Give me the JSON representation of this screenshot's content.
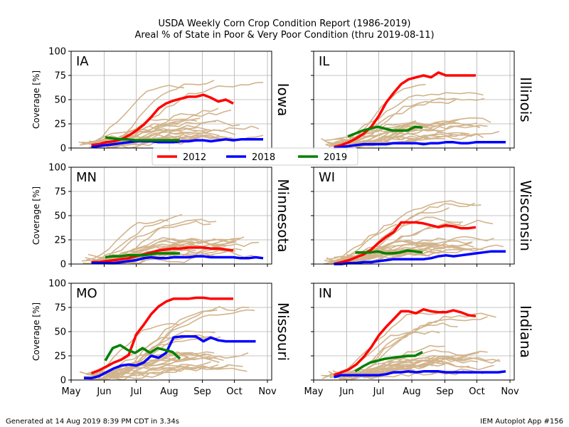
{
  "title_line1": "USDA Weekly Corn Crop Condition Report (1986-2019)",
  "title_line2": "Areal % of State in Poor & Very Poor Condition (thru 2019-08-11)",
  "footer_left": "Generated at 14 Aug 2019 8:39 PM CDT in 3.34s",
  "footer_right": "IEM Autoplot App #156",
  "colors": {
    "y2012": "#ff0000",
    "y2018": "#0000ff",
    "y2019": "#008000",
    "history": "#d2b48c"
  },
  "legend": [
    "2012",
    "2018",
    "2019"
  ],
  "chart_data": [
    {
      "type": "line",
      "abbr": "IA",
      "state": "Iowa",
      "ylabel": "Coverage [%]",
      "ylim": [
        0,
        100
      ],
      "y_ticks": [
        0,
        25,
        50,
        75,
        100
      ],
      "x_ticks": [
        "May",
        "Jun",
        "Jul",
        "Aug",
        "Sep",
        "Oct",
        "Nov"
      ],
      "grid": true,
      "series": [
        {
          "name": "2012",
          "x": [
            "05-20",
            "05-27",
            "06-03",
            "06-10",
            "06-17",
            "06-24",
            "07-01",
            "07-08",
            "07-15",
            "07-22",
            "07-29",
            "08-05",
            "08-12",
            "08-19",
            "08-26",
            "09-02",
            "09-09",
            "09-16",
            "09-23",
            "09-30"
          ],
          "y": [
            3,
            4,
            6,
            7,
            9,
            13,
            18,
            24,
            32,
            41,
            46,
            49,
            51,
            53,
            53,
            55,
            52,
            48,
            50,
            46
          ]
        },
        {
          "name": "2018",
          "x": [
            "05-20",
            "05-27",
            "06-03",
            "06-10",
            "06-17",
            "06-24",
            "07-01",
            "07-08",
            "07-15",
            "07-22",
            "07-29",
            "08-05",
            "08-12",
            "08-19",
            "08-26",
            "09-02",
            "09-09",
            "09-16",
            "09-23",
            "09-30",
            "10-07",
            "10-14",
            "10-21",
            "10-28"
          ],
          "y": [
            1,
            2,
            3,
            4,
            5,
            6,
            7,
            7,
            7,
            6,
            6,
            6,
            7,
            7,
            8,
            8,
            7,
            8,
            9,
            8,
            9,
            9,
            9,
            9
          ]
        },
        {
          "name": "2019",
          "x": [
            "06-02",
            "06-09",
            "06-16",
            "06-23",
            "06-30",
            "07-07",
            "07-14",
            "07-21",
            "07-28",
            "08-04",
            "08-11"
          ],
          "y": [
            11,
            10,
            9,
            9,
            8,
            8,
            8,
            8,
            8,
            8,
            8
          ]
        }
      ]
    },
    {
      "type": "line",
      "abbr": "IL",
      "state": "Illinois",
      "ylabel": "",
      "ylim": [
        0,
        100
      ],
      "y_ticks": [
        0,
        25,
        50,
        75,
        100
      ],
      "x_ticks": [
        "May",
        "Jun",
        "Jul",
        "Aug",
        "Sep",
        "Oct",
        "Nov"
      ],
      "grid": true,
      "series": [
        {
          "name": "2012",
          "x": [
            "05-20",
            "05-27",
            "06-03",
            "06-10",
            "06-17",
            "06-24",
            "07-01",
            "07-08",
            "07-15",
            "07-22",
            "07-29",
            "08-05",
            "08-12",
            "08-19",
            "08-26",
            "09-02",
            "09-09",
            "09-16",
            "09-23",
            "09-30"
          ],
          "y": [
            1,
            3,
            6,
            10,
            15,
            22,
            33,
            47,
            57,
            66,
            71,
            73,
            75,
            73,
            78,
            75,
            75,
            75,
            75,
            75
          ]
        },
        {
          "name": "2018",
          "x": [
            "05-20",
            "05-27",
            "06-03",
            "06-10",
            "06-17",
            "06-24",
            "07-01",
            "07-08",
            "07-15",
            "07-22",
            "07-29",
            "08-05",
            "08-12",
            "08-19",
            "08-26",
            "09-02",
            "09-09",
            "09-16",
            "09-23",
            "09-30",
            "10-07",
            "10-14",
            "10-21",
            "10-28"
          ],
          "y": [
            0,
            1,
            2,
            3,
            4,
            4,
            4,
            4,
            5,
            5,
            5,
            5,
            4,
            5,
            5,
            6,
            6,
            5,
            5,
            6,
            6,
            6,
            6,
            6
          ]
        },
        {
          "name": "2019",
          "x": [
            "06-02",
            "06-09",
            "06-16",
            "06-23",
            "06-30",
            "07-07",
            "07-14",
            "07-21",
            "07-28",
            "08-04",
            "08-11"
          ],
          "y": [
            12,
            15,
            18,
            20,
            22,
            20,
            18,
            18,
            18,
            22,
            21
          ]
        }
      ]
    },
    {
      "type": "line",
      "abbr": "MN",
      "state": "Minnesota",
      "ylabel": "Coverage [%]",
      "ylim": [
        0,
        100
      ],
      "y_ticks": [
        0,
        25,
        50,
        75,
        100
      ],
      "x_ticks": [
        "May",
        "Jun",
        "Jul",
        "Aug",
        "Sep",
        "Oct",
        "Nov"
      ],
      "grid": true,
      "series": [
        {
          "name": "2012",
          "x": [
            "05-20",
            "05-27",
            "06-03",
            "06-10",
            "06-17",
            "06-24",
            "07-01",
            "07-08",
            "07-15",
            "07-22",
            "07-29",
            "08-05",
            "08-12",
            "08-19",
            "08-26",
            "09-02",
            "09-09",
            "09-16",
            "09-23",
            "09-30"
          ],
          "y": [
            2,
            2,
            3,
            4,
            5,
            6,
            8,
            10,
            12,
            14,
            15,
            16,
            16,
            17,
            17,
            17,
            16,
            16,
            15,
            14
          ]
        },
        {
          "name": "2018",
          "x": [
            "05-20",
            "05-27",
            "06-03",
            "06-10",
            "06-17",
            "06-24",
            "07-01",
            "07-08",
            "07-15",
            "07-22",
            "07-29",
            "08-05",
            "08-12",
            "08-19",
            "08-26",
            "09-02",
            "09-09",
            "09-16",
            "09-23",
            "09-30",
            "10-07",
            "10-14",
            "10-21",
            "10-28"
          ],
          "y": [
            1,
            1,
            1,
            1,
            2,
            3,
            4,
            6,
            7,
            6,
            6,
            7,
            7,
            7,
            8,
            8,
            7,
            7,
            7,
            7,
            6,
            6,
            7,
            6
          ]
        },
        {
          "name": "2019",
          "x": [
            "06-02",
            "06-09",
            "06-16",
            "06-23",
            "06-30",
            "07-07",
            "07-14",
            "07-21",
            "07-28",
            "08-04",
            "08-11"
          ],
          "y": [
            7,
            8,
            8,
            9,
            9,
            9,
            10,
            11,
            11,
            11,
            11
          ]
        }
      ]
    },
    {
      "type": "line",
      "abbr": "WI",
      "state": "Wisconsin",
      "ylabel": "",
      "ylim": [
        0,
        100
      ],
      "y_ticks": [
        0,
        25,
        50,
        75,
        100
      ],
      "x_ticks": [
        "May",
        "Jun",
        "Jul",
        "Aug",
        "Sep",
        "Oct",
        "Nov"
      ],
      "grid": true,
      "series": [
        {
          "name": "2012",
          "x": [
            "05-20",
            "05-27",
            "06-03",
            "06-10",
            "06-17",
            "06-24",
            "07-01",
            "07-08",
            "07-15",
            "07-22",
            "07-29",
            "08-05",
            "08-12",
            "08-19",
            "08-26",
            "09-02",
            "09-09",
            "09-16",
            "09-23",
            "09-30"
          ],
          "y": [
            0,
            2,
            4,
            7,
            10,
            15,
            22,
            28,
            33,
            43,
            43,
            43,
            42,
            40,
            38,
            40,
            39,
            37,
            37,
            38
          ]
        },
        {
          "name": "2018",
          "x": [
            "05-20",
            "05-27",
            "06-03",
            "06-10",
            "06-17",
            "06-24",
            "07-01",
            "07-08",
            "07-15",
            "07-22",
            "07-29",
            "08-05",
            "08-12",
            "08-19",
            "08-26",
            "09-02",
            "09-09",
            "09-16",
            "09-23",
            "09-30",
            "10-07",
            "10-14",
            "10-21",
            "10-28"
          ],
          "y": [
            0,
            0,
            1,
            1,
            2,
            2,
            3,
            4,
            5,
            5,
            5,
            5,
            5,
            6,
            8,
            9,
            8,
            9,
            10,
            11,
            12,
            13,
            13,
            13
          ]
        },
        {
          "name": "2019",
          "x": [
            "06-09",
            "06-16",
            "06-23",
            "06-30",
            "07-07",
            "07-14",
            "07-21",
            "07-28",
            "08-04",
            "08-11"
          ],
          "y": [
            12,
            12,
            12,
            13,
            11,
            11,
            12,
            14,
            13,
            12
          ]
        }
      ]
    },
    {
      "type": "line",
      "abbr": "MO",
      "state": "Missouri",
      "ylabel": "Coverage [%]",
      "ylim": [
        0,
        100
      ],
      "y_ticks": [
        0,
        25,
        50,
        75,
        100
      ],
      "x_ticks": [
        "May",
        "Jun",
        "Jul",
        "Aug",
        "Sep",
        "Oct",
        "Nov"
      ],
      "grid": true,
      "series": [
        {
          "name": "2012",
          "x": [
            "05-20",
            "05-27",
            "06-03",
            "06-10",
            "06-17",
            "06-24",
            "07-01",
            "07-08",
            "07-15",
            "07-22",
            "07-29",
            "08-05",
            "08-12",
            "08-19",
            "08-26",
            "09-02",
            "09-09",
            "09-16",
            "09-23",
            "09-30"
          ],
          "y": [
            7,
            10,
            14,
            18,
            21,
            26,
            47,
            57,
            68,
            76,
            81,
            84,
            84,
            84,
            85,
            85,
            84,
            84,
            84,
            84
          ]
        },
        {
          "name": "2018",
          "x": [
            "05-13",
            "05-20",
            "05-27",
            "06-03",
            "06-10",
            "06-17",
            "06-24",
            "07-01",
            "07-08",
            "07-15",
            "07-22",
            "07-29",
            "08-05",
            "08-12",
            "08-19",
            "08-26",
            "09-02",
            "09-09",
            "09-16",
            "09-23",
            "09-30",
            "10-07",
            "10-14",
            "10-21"
          ],
          "y": [
            2,
            2,
            4,
            8,
            12,
            15,
            16,
            15,
            18,
            25,
            23,
            28,
            44,
            45,
            45,
            45,
            40,
            44,
            41,
            40,
            40,
            40,
            40,
            40
          ]
        },
        {
          "name": "2019",
          "x": [
            "06-02",
            "06-09",
            "06-16",
            "06-23",
            "06-30",
            "07-07",
            "07-14",
            "07-21",
            "07-28",
            "08-04",
            "08-11"
          ],
          "y": [
            20,
            33,
            36,
            31,
            28,
            33,
            28,
            33,
            31,
            29,
            22
          ]
        }
      ]
    },
    {
      "type": "line",
      "abbr": "IN",
      "state": "Indiana",
      "ylabel": "",
      "ylim": [
        0,
        100
      ],
      "y_ticks": [
        0,
        25,
        50,
        75,
        100
      ],
      "x_ticks": [
        "May",
        "Jun",
        "Jul",
        "Aug",
        "Sep",
        "Oct",
        "Nov"
      ],
      "grid": true,
      "series": [
        {
          "name": "2012",
          "x": [
            "05-20",
            "05-27",
            "06-03",
            "06-10",
            "06-17",
            "06-24",
            "07-01",
            "07-08",
            "07-15",
            "07-22",
            "07-29",
            "08-05",
            "08-12",
            "08-19",
            "08-26",
            "09-02",
            "09-09",
            "09-16",
            "09-23",
            "09-30"
          ],
          "y": [
            5,
            8,
            11,
            16,
            24,
            34,
            46,
            55,
            63,
            71,
            71,
            69,
            73,
            71,
            70,
            70,
            72,
            70,
            67,
            66
          ]
        },
        {
          "name": "2018",
          "x": [
            "05-20",
            "05-27",
            "06-03",
            "06-10",
            "06-17",
            "06-24",
            "07-01",
            "07-08",
            "07-15",
            "07-22",
            "07-29",
            "08-05",
            "08-12",
            "08-19",
            "08-26",
            "09-02",
            "09-09",
            "09-16",
            "09-23",
            "09-30",
            "10-07",
            "10-14",
            "10-21",
            "10-28"
          ],
          "y": [
            3,
            5,
            5,
            5,
            5,
            5,
            5,
            6,
            8,
            8,
            9,
            8,
            9,
            9,
            9,
            8,
            8,
            8,
            8,
            8,
            8,
            8,
            8,
            9
          ]
        },
        {
          "name": "2019",
          "x": [
            "06-09",
            "06-16",
            "06-23",
            "06-30",
            "07-07",
            "07-14",
            "07-21",
            "07-28",
            "08-04",
            "08-11"
          ],
          "y": [
            9,
            14,
            18,
            20,
            22,
            23,
            24,
            25,
            25,
            29
          ]
        }
      ]
    }
  ]
}
